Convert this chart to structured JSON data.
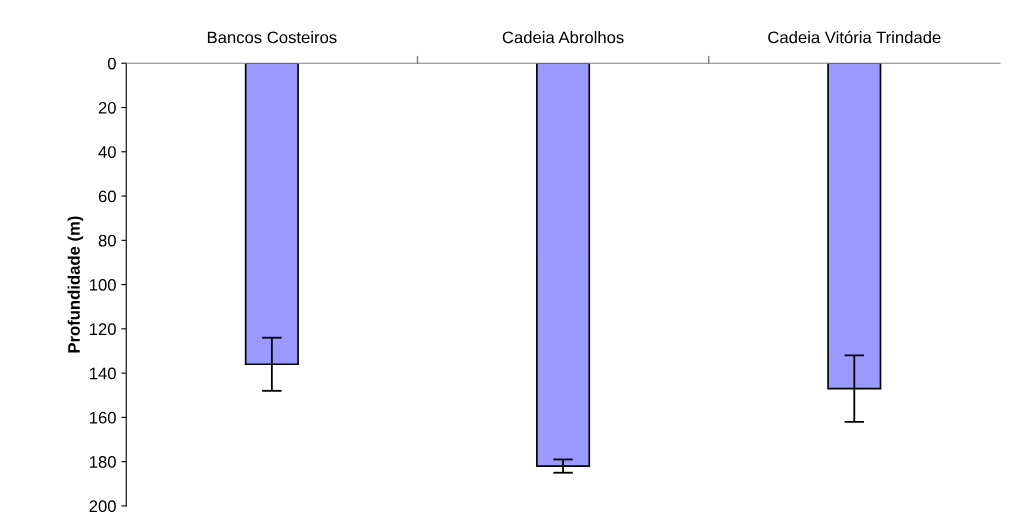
{
  "chart_data": {
    "type": "bar",
    "ylabel": "Profundidade (m)",
    "categories": [
      "Bancos Costeiros",
      "Cadeia Abrolhos",
      "Cadeia Vitória Trindade"
    ],
    "values": [
      136,
      182,
      147
    ],
    "errors": [
      12,
      3,
      15
    ],
    "color": "#9999ff",
    "ylim": [
      200,
      0
    ],
    "yticks": [
      0,
      20,
      40,
      60,
      80,
      100,
      120,
      140,
      160,
      180,
      200
    ],
    "grid": false,
    "legend": false
  }
}
